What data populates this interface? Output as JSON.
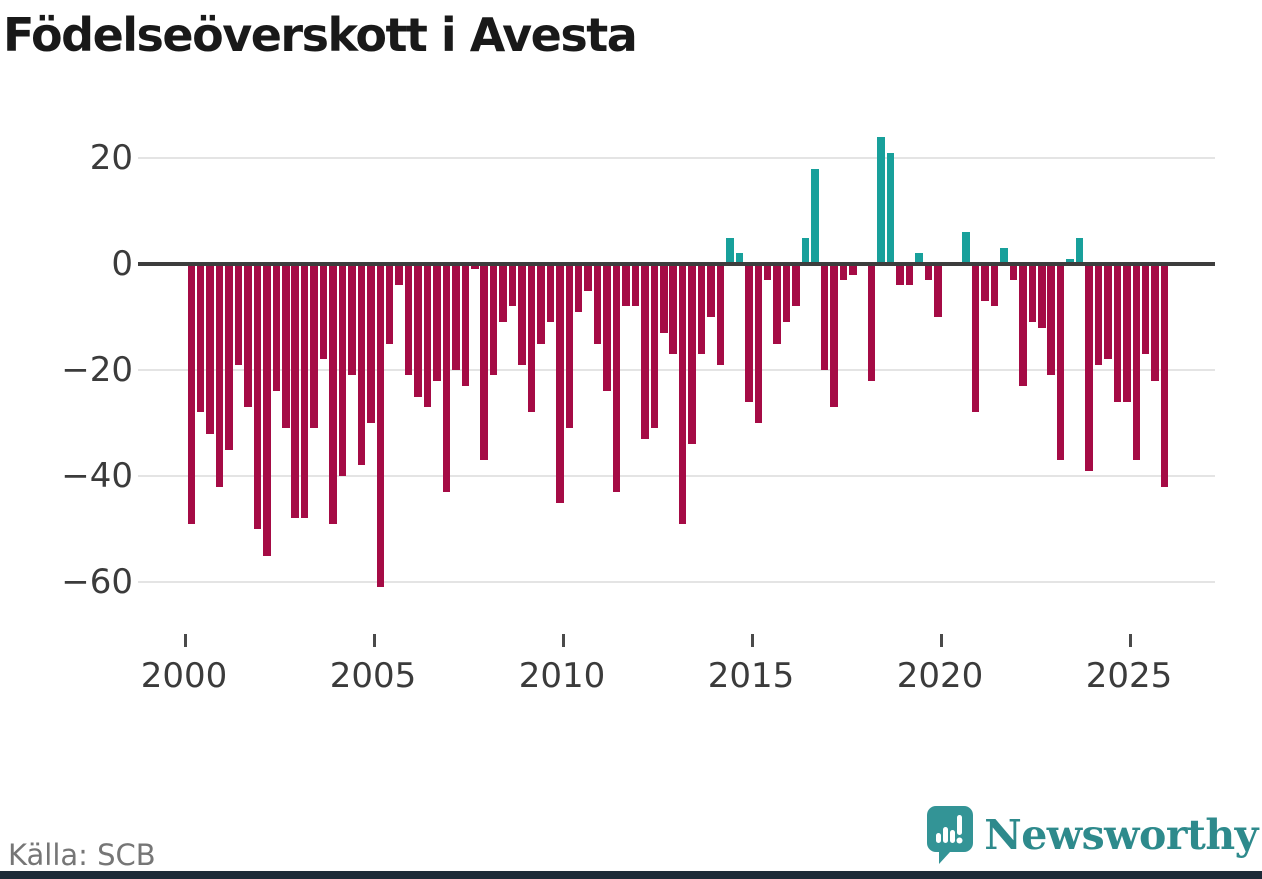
{
  "title": "Födelseöverskott i Avesta",
  "source": "Källa: SCB",
  "logo": {
    "text": "Newsworthy",
    "icon": "newsworthy-pin-barchart-icon",
    "color": "#2e8a8c"
  },
  "colors": {
    "negative_bar": "#a50b45",
    "positive_bar": "#18a09b",
    "zero_axis": "#3d3d3d",
    "gridline": "#e4e4e4",
    "axis_text": "#3b3b3b",
    "source_text": "#767676",
    "bottom_strip": "#1d2b38"
  },
  "chart_data": {
    "type": "bar",
    "title": "Födelseöverskott i Avesta",
    "frequency": "quarterly",
    "start_period": "2000 Q1",
    "end_period": "2025 Q4",
    "values": [
      -49,
      -28,
      -32,
      -42,
      -35,
      -19,
      -27,
      -50,
      -55,
      -24,
      -31,
      -48,
      -48,
      -31,
      -18,
      -49,
      -40,
      -21,
      -38,
      -30,
      -61,
      -15,
      -4,
      -21,
      -25,
      -27,
      -22,
      -43,
      -20,
      -23,
      -1,
      -37,
      -21,
      -11,
      -8,
      -19,
      -28,
      -15,
      -11,
      -45,
      -31,
      -9,
      -5,
      -15,
      -24,
      -43,
      -8,
      -8,
      -33,
      -31,
      -13,
      -17,
      -49,
      -34,
      -17,
      -10,
      -19,
      5,
      2,
      -26,
      -30,
      -3,
      -15,
      -11,
      -8,
      5,
      18,
      -20,
      -27,
      -3,
      -2,
      0,
      -22,
      24,
      21,
      -4,
      -4,
      2,
      -3,
      -10,
      0,
      0,
      6,
      -28,
      -7,
      -8,
      3,
      -3,
      -23,
      -11,
      -12,
      -21,
      -37,
      1,
      5,
      -39,
      -19,
      -18,
      -26,
      -26,
      -37,
      -17,
      -22,
      -42
    ],
    "x_ticks": [
      {
        "year": 2000,
        "label": "2000"
      },
      {
        "year": 2005,
        "label": "2005"
      },
      {
        "year": 2010,
        "label": "2010"
      },
      {
        "year": 2015,
        "label": "2015"
      },
      {
        "year": 2020,
        "label": "2020"
      },
      {
        "year": 2025,
        "label": "2025"
      }
    ],
    "y_ticks": [
      {
        "value": 20,
        "label": "20"
      },
      {
        "value": 0,
        "label": "0"
      },
      {
        "value": -20,
        "label": "−20"
      },
      {
        "value": -40,
        "label": "−40"
      },
      {
        "value": -60,
        "label": "−60"
      }
    ],
    "ylim": [
      -65,
      26
    ],
    "grid": "horizontal",
    "legend": "none"
  }
}
